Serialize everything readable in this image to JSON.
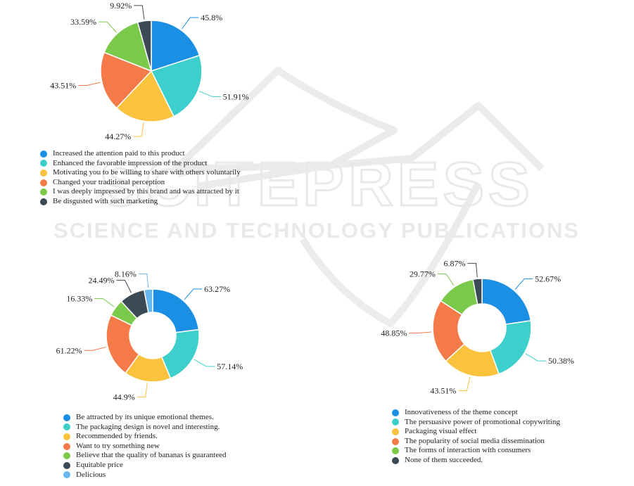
{
  "chart_data": [
    {
      "type": "pie",
      "categories": [
        "Increased the attention paid to this product",
        "Enhanced the favorable impression of the product",
        "Motivating you to be willing to share with others voluntarily",
        "Changed your traditional perception",
        "I was deeply impressed by this brand and was attracted by it",
        "Be disgusted with such marketing"
      ],
      "values": [
        45.8,
        51.91,
        44.27,
        43.51,
        33.59,
        9.92
      ],
      "data_labels": [
        "45.8%",
        "51.91%",
        "44.27%",
        "43.51%",
        "33.59%",
        "9.92%"
      ],
      "colors": [
        "#1a8fe3",
        "#3ccfcb",
        "#fbc33d",
        "#f47a4a",
        "#7bc94a",
        "#3a4a57"
      ],
      "legend_position": "bottom-left"
    },
    {
      "type": "pie",
      "donut": true,
      "categories": [
        "Be attracted by its unique emotional themes.",
        "The packaging design is novel and interesting.",
        "Recommended by friends.",
        "Want to try something new",
        "Believe that the quality of bananas is guaranteed",
        "Equitable price",
        "Delicious"
      ],
      "values": [
        63.27,
        57.14,
        44.9,
        61.22,
        16.33,
        24.49,
        8.16
      ],
      "data_labels": [
        "63.27%",
        "57.14%",
        "44.9%",
        "61.22%",
        "16.33%",
        "24.49%",
        "8.16%"
      ],
      "colors": [
        "#1a8fe3",
        "#3ccfcb",
        "#fbc33d",
        "#f47a4a",
        "#7bc94a",
        "#3a4a57",
        "#69b7f0"
      ],
      "legend_position": "bottom-left"
    },
    {
      "type": "pie",
      "donut": true,
      "categories": [
        "Innovativeness of the theme concept",
        "The persuasive power of promotional copywriting",
        "Packaging visual effect",
        "The popularity of social media dissemination",
        "The forms of interaction with consumers",
        "None of them succeeded."
      ],
      "values": [
        52.67,
        50.38,
        43.51,
        48.85,
        29.77,
        6.87
      ],
      "data_labels": [
        "52.67%",
        "50.38%",
        "43.51%",
        "48.85%",
        "29.77%",
        "6.87%"
      ],
      "colors": [
        "#1a8fe3",
        "#3ccfcb",
        "#fbc33d",
        "#f47a4a",
        "#7bc94a",
        "#3a4a57"
      ],
      "legend_position": "bottom-left"
    }
  ],
  "watermark": {
    "logo_text": "SCITEPRESS",
    "tagline": "SCIENCE AND TECHNOLOGY PUBLICATIONS"
  }
}
